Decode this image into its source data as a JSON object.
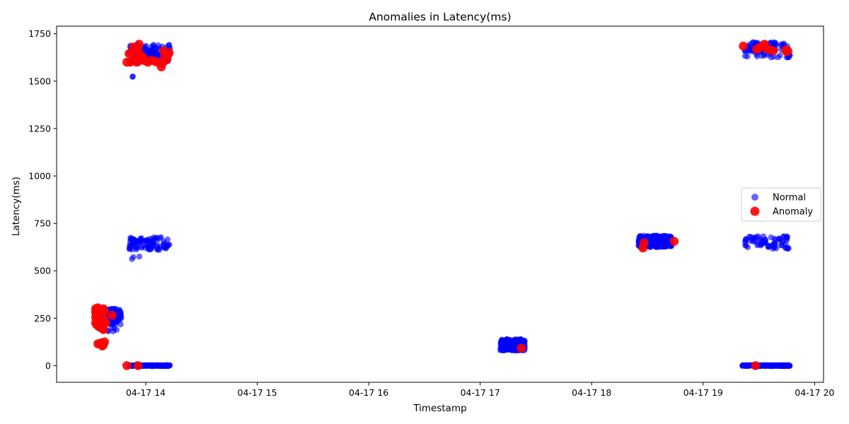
{
  "chart_data": {
    "type": "scatter",
    "title": "Anomalies in Latency(ms)",
    "xlabel": "Timestamp",
    "ylabel": "Latency(ms)",
    "x_axis": "time",
    "x_ticks": [
      "04-17 14",
      "04-17 15",
      "04-17 16",
      "04-17 17",
      "04-17 18",
      "04-17 19",
      "04-17 20"
    ],
    "x_tick_hours": [
      14,
      15,
      16,
      17,
      18,
      19,
      20
    ],
    "xlim_hours": [
      13.2,
      20.08
    ],
    "y_ticks": [
      "0",
      "250",
      "500",
      "750",
      "1000",
      "1250",
      "1500",
      "1750"
    ],
    "ylim": [
      -88,
      1790
    ],
    "grid": false,
    "legend_position": "center-right",
    "series": [
      {
        "name": "Normal",
        "color": "#0000ff",
        "opacity": 0.6,
        "marker": "circle",
        "clusters": [
          {
            "x_range": [
              13.55,
              13.78
            ],
            "y_range": [
              215,
              300
            ],
            "count": 170
          },
          {
            "x_range": [
              13.6,
              13.75
            ],
            "y_range": [
              180,
              200
            ],
            "count": 6
          },
          {
            "x_range": [
              13.57,
              13.62
            ],
            "y_range": [
              105,
              125
            ],
            "count": 5
          },
          {
            "x_range": [
              13.85,
              14.22
            ],
            "y_range": [
              -2,
              2
            ],
            "count": 170
          },
          {
            "x_range": [
              13.85,
              14.22
            ],
            "y_range": [
              610,
              680
            ],
            "count": 90
          },
          {
            "x_range": [
              13.85,
              13.99
            ],
            "y_range": [
              560,
              585
            ],
            "count": 3
          },
          {
            "x_range": [
              13.85,
              14.22
            ],
            "y_range": [
              1595,
              1695
            ],
            "count": 110
          },
          {
            "x_range": [
              13.87,
              13.9
            ],
            "y_range": [
              1515,
              1540
            ],
            "count": 2
          },
          {
            "x_range": [
              17.18,
              17.4
            ],
            "y_range": [
              80,
              140
            ],
            "count": 240
          },
          {
            "x_range": [
              18.42,
              18.72
            ],
            "y_range": [
              625,
              685
            ],
            "count": 280
          },
          {
            "x_range": [
              19.35,
              19.78
            ],
            "y_range": [
              -2,
              2
            ],
            "count": 220
          },
          {
            "x_range": [
              19.37,
              19.77
            ],
            "y_range": [
              615,
              685
            ],
            "count": 70
          },
          {
            "x_range": [
              19.37,
              19.78
            ],
            "y_range": [
              1625,
              1705
            ],
            "count": 90
          }
        ]
      },
      {
        "name": "Anomaly",
        "color": "#ff0000",
        "opacity": 0.9,
        "marker": "circle",
        "points": [
          [
            13.55,
            300
          ],
          [
            13.56,
            295
          ],
          [
            13.57,
            305
          ],
          [
            13.58,
            290
          ],
          [
            13.55,
            280
          ],
          [
            13.56,
            270
          ],
          [
            13.57,
            285
          ],
          [
            13.58,
            275
          ],
          [
            13.59,
            265
          ],
          [
            13.55,
            255
          ],
          [
            13.56,
            245
          ],
          [
            13.57,
            250
          ],
          [
            13.58,
            240
          ],
          [
            13.59,
            230
          ],
          [
            13.55,
            225
          ],
          [
            13.56,
            215
          ],
          [
            13.57,
            220
          ],
          [
            13.58,
            205
          ],
          [
            13.59,
            210
          ],
          [
            13.6,
            200
          ],
          [
            13.61,
            195
          ],
          [
            13.62,
            190
          ],
          [
            13.6,
            280
          ],
          [
            13.61,
            290
          ],
          [
            13.62,
            300
          ],
          [
            13.63,
            285
          ],
          [
            13.6,
            260
          ],
          [
            13.62,
            245
          ],
          [
            13.63,
            235
          ],
          [
            13.64,
            225
          ],
          [
            13.57,
            115
          ],
          [
            13.6,
            120
          ],
          [
            13.62,
            110
          ],
          [
            13.63,
            125
          ],
          [
            13.61,
            103
          ],
          [
            13.7,
            265
          ],
          [
            13.83,
            0
          ],
          [
            13.93,
            0
          ],
          [
            13.83,
            1600
          ],
          [
            13.85,
            1645
          ],
          [
            13.86,
            1600
          ],
          [
            13.88,
            1655
          ],
          [
            13.89,
            1680
          ],
          [
            13.9,
            1625
          ],
          [
            13.91,
            1655
          ],
          [
            13.92,
            1600
          ],
          [
            13.93,
            1670
          ],
          [
            13.94,
            1695
          ],
          [
            13.95,
            1640
          ],
          [
            13.96,
            1610
          ],
          [
            13.98,
            1625
          ],
          [
            14.0,
            1605
          ],
          [
            14.02,
            1600
          ],
          [
            14.05,
            1610
          ],
          [
            14.08,
            1605
          ],
          [
            14.1,
            1600
          ],
          [
            14.14,
            1575
          ],
          [
            14.15,
            1595
          ],
          [
            14.16,
            1660
          ],
          [
            14.17,
            1630
          ],
          [
            14.18,
            1645
          ],
          [
            14.2,
            1640
          ],
          [
            14.21,
            1650
          ],
          [
            14.19,
            1615
          ],
          [
            17.37,
            92
          ],
          [
            18.46,
            620
          ],
          [
            18.47,
            648
          ],
          [
            18.74,
            655
          ],
          [
            19.47,
            0
          ],
          [
            19.36,
            1685
          ],
          [
            19.48,
            1668
          ],
          [
            19.5,
            1675
          ],
          [
            19.52,
            1680
          ],
          [
            19.55,
            1695
          ],
          [
            19.57,
            1672
          ],
          [
            19.6,
            1665
          ],
          [
            19.63,
            1660
          ],
          [
            19.74,
            1665
          ],
          [
            19.75,
            1655
          ],
          [
            19.76,
            1660
          ]
        ]
      }
    ]
  }
}
